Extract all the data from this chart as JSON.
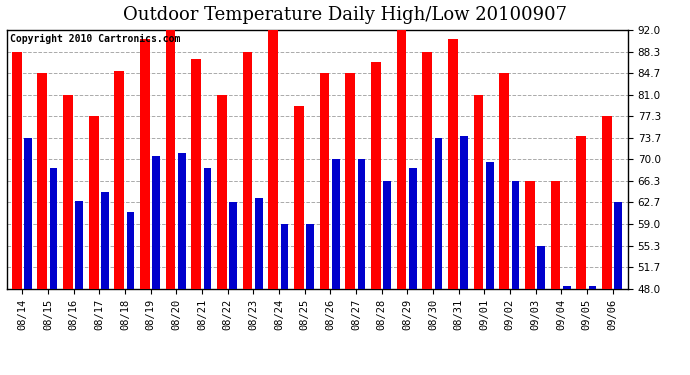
{
  "title": "Outdoor Temperature Daily High/Low 20100907",
  "copyright": "Copyright 2010 Cartronics.com",
  "dates": [
    "08/14",
    "08/15",
    "08/16",
    "08/17",
    "08/18",
    "08/19",
    "08/20",
    "08/21",
    "08/22",
    "08/23",
    "08/24",
    "08/25",
    "08/26",
    "08/27",
    "08/28",
    "08/29",
    "08/30",
    "08/31",
    "09/01",
    "09/02",
    "09/03",
    "09/04",
    "09/05",
    "09/06"
  ],
  "highs": [
    88.3,
    84.7,
    81.0,
    77.3,
    85.0,
    90.5,
    92.0,
    87.0,
    81.0,
    88.3,
    92.0,
    79.0,
    84.7,
    84.7,
    86.5,
    92.0,
    88.3,
    90.5,
    81.0,
    84.7,
    66.3,
    66.3,
    74.0,
    77.3
  ],
  "lows": [
    73.7,
    68.5,
    63.0,
    64.5,
    61.0,
    70.5,
    71.0,
    68.5,
    62.7,
    63.5,
    59.0,
    59.0,
    70.0,
    70.0,
    66.3,
    68.5,
    73.7,
    74.0,
    69.5,
    66.3,
    55.3,
    48.5,
    48.5,
    62.7
  ],
  "high_color": "#ff0000",
  "low_color": "#0000cc",
  "bg_color": "#ffffff",
  "grid_color": "#aaaaaa",
  "ymin": 48.0,
  "ymax": 92.0,
  "yticks": [
    48.0,
    51.7,
    55.3,
    59.0,
    62.7,
    66.3,
    70.0,
    73.7,
    77.3,
    81.0,
    84.7,
    88.3,
    92.0
  ],
  "title_fontsize": 13,
  "copyright_fontsize": 7,
  "tick_fontsize": 7.5
}
